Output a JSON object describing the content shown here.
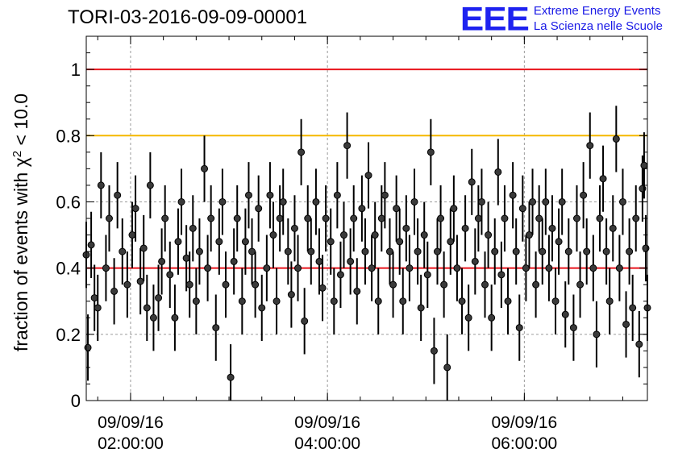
{
  "title": "TORI-03-2016-09-09-00001",
  "logo": {
    "mark": "EEE",
    "line1": "Extreme Energy Events",
    "line2": "La Scienza nelle Scuole",
    "color": "#1e22f0"
  },
  "chart_data": {
    "type": "scatter",
    "title": "TORI-03-2016-09-09-00001",
    "ylabel": "fraction of events with χ² < 10.0",
    "ylim": [
      0,
      1.1
    ],
    "yticks": [
      0,
      0.2,
      0.4,
      0.6,
      0.8,
      1
    ],
    "ytick_labels": [
      "0",
      "0.2",
      "0.4",
      "0.6",
      "0.8",
      "1"
    ],
    "xlim": [
      "2016-09-09 01:33:00",
      "2016-09-09 07:15:00"
    ],
    "xticks": [
      {
        "date": "09/09/16",
        "time": "02:00:00"
      },
      {
        "date": "09/09/16",
        "time": "04:00:00"
      },
      {
        "date": "09/09/16",
        "time": "06:00:00"
      }
    ],
    "grid": true,
    "reference_lines": [
      {
        "y": 1.0,
        "color": "#e8141c"
      },
      {
        "y": 0.8,
        "color": "#f5b800"
      },
      {
        "y": 0.4,
        "color": "#e8141c"
      }
    ],
    "series": [
      {
        "marker_color": "#111111",
        "error": 0.1,
        "points": [
          [
            "01:33",
            0.44
          ],
          [
            "01:34",
            0.16
          ],
          [
            "01:36",
            0.47
          ],
          [
            "01:38",
            0.31
          ],
          [
            "01:40",
            0.28
          ],
          [
            "01:42",
            0.65
          ],
          [
            "01:45",
            0.4
          ],
          [
            "01:47",
            0.55
          ],
          [
            "01:50",
            0.33
          ],
          [
            "01:52",
            0.62
          ],
          [
            "01:55",
            0.45
          ],
          [
            "01:58",
            0.35
          ],
          [
            "02:01",
            0.5
          ],
          [
            "02:03",
            0.58
          ],
          [
            "02:06",
            0.36
          ],
          [
            "02:08",
            0.46
          ],
          [
            "02:10",
            0.28
          ],
          [
            "02:12",
            0.65
          ],
          [
            "02:14",
            0.25
          ],
          [
            "02:17",
            0.31
          ],
          [
            "02:19",
            0.42
          ],
          [
            "02:21",
            0.55
          ],
          [
            "02:24",
            0.38
          ],
          [
            "02:27",
            0.25
          ],
          [
            "02:29",
            0.48
          ],
          [
            "02:31",
            0.6
          ],
          [
            "02:34",
            0.43
          ],
          [
            "02:36",
            0.35
          ],
          [
            "02:38",
            0.52
          ],
          [
            "02:40",
            0.3
          ],
          [
            "02:42",
            0.45
          ],
          [
            "02:45",
            0.7
          ],
          [
            "02:47",
            0.4
          ],
          [
            "02:49",
            0.55
          ],
          [
            "02:52",
            0.22
          ],
          [
            "02:54",
            0.48
          ],
          [
            "02:56",
            0.6
          ],
          [
            "02:58",
            0.35
          ],
          [
            "03:01",
            0.07
          ],
          [
            "03:03",
            0.42
          ],
          [
            "03:05",
            0.55
          ],
          [
            "03:08",
            0.3
          ],
          [
            "03:10",
            0.48
          ],
          [
            "03:12",
            0.62
          ],
          [
            "03:14",
            0.45
          ],
          [
            "03:16",
            0.35
          ],
          [
            "03:18",
            0.58
          ],
          [
            "03:20",
            0.28
          ],
          [
            "03:23",
            0.4
          ],
          [
            "03:25",
            0.62
          ],
          [
            "03:27",
            0.5
          ],
          [
            "03:29",
            0.3
          ],
          [
            "03:31",
            0.55
          ],
          [
            "03:33",
            0.6
          ],
          [
            "03:36",
            0.45
          ],
          [
            "03:38",
            0.32
          ],
          [
            "03:40",
            0.52
          ],
          [
            "03:42",
            0.4
          ],
          [
            "03:44",
            0.75
          ],
          [
            "03:46",
            0.24
          ],
          [
            "03:48",
            0.55
          ],
          [
            "03:50",
            0.45
          ],
          [
            "03:53",
            0.6
          ],
          [
            "03:55",
            0.42
          ],
          [
            "03:57",
            0.34
          ],
          [
            "03:59",
            0.55
          ],
          [
            "04:02",
            0.48
          ],
          [
            "04:04",
            0.3
          ],
          [
            "04:06",
            0.62
          ],
          [
            "04:08",
            0.38
          ],
          [
            "04:10",
            0.5
          ],
          [
            "04:12",
            0.77
          ],
          [
            "04:14",
            0.42
          ],
          [
            "04:16",
            0.55
          ],
          [
            "04:18",
            0.33
          ],
          [
            "04:21",
            0.58
          ],
          [
            "04:23",
            0.45
          ],
          [
            "04:25",
            0.68
          ],
          [
            "04:27",
            0.4
          ],
          [
            "04:29",
            0.5
          ],
          [
            "04:31",
            0.3
          ],
          [
            "04:33",
            0.55
          ],
          [
            "04:35",
            0.62
          ],
          [
            "04:38",
            0.45
          ],
          [
            "04:40",
            0.35
          ],
          [
            "04:42",
            0.58
          ],
          [
            "04:44",
            0.48
          ],
          [
            "04:46",
            0.3
          ],
          [
            "04:48",
            0.52
          ],
          [
            "04:50",
            0.4
          ],
          [
            "04:53",
            0.6
          ],
          [
            "04:55",
            0.45
          ],
          [
            "04:57",
            0.28
          ],
          [
            "04:59",
            0.5
          ],
          [
            "05:01",
            0.38
          ],
          [
            "05:03",
            0.75
          ],
          [
            "05:05",
            0.15
          ],
          [
            "05:07",
            0.45
          ],
          [
            "05:09",
            0.55
          ],
          [
            "05:11",
            0.35
          ],
          [
            "05:13",
            0.1
          ],
          [
            "05:15",
            0.48
          ],
          [
            "05:17",
            0.58
          ],
          [
            "05:19",
            0.4
          ],
          [
            "05:22",
            0.3
          ],
          [
            "05:24",
            0.52
          ],
          [
            "05:26",
            0.25
          ],
          [
            "05:28",
            0.66
          ],
          [
            "05:30",
            0.42
          ],
          [
            "05:32",
            0.55
          ],
          [
            "05:34",
            0.6
          ],
          [
            "05:36",
            0.35
          ],
          [
            "05:38",
            0.5
          ],
          [
            "05:40",
            0.25
          ],
          [
            "05:42",
            0.45
          ],
          [
            "05:44",
            0.69
          ],
          [
            "05:46",
            0.38
          ],
          [
            "05:48",
            0.55
          ],
          [
            "05:50",
            0.3
          ],
          [
            "05:53",
            0.62
          ],
          [
            "05:55",
            0.45
          ],
          [
            "05:57",
            0.22
          ],
          [
            "05:59",
            0.58
          ],
          [
            "06:01",
            0.4
          ],
          [
            "06:03",
            0.5
          ],
          [
            "06:05",
            0.6
          ],
          [
            "06:07",
            0.35
          ],
          [
            "06:09",
            0.55
          ],
          [
            "06:11",
            0.45
          ],
          [
            "06:13",
            0.6
          ],
          [
            "06:15",
            0.4
          ],
          [
            "06:17",
            0.52
          ],
          [
            "06:19",
            0.3
          ],
          [
            "06:21",
            0.48
          ],
          [
            "06:23",
            0.6
          ],
          [
            "06:25",
            0.26
          ],
          [
            "06:27",
            0.45
          ],
          [
            "06:30",
            0.22
          ],
          [
            "06:32",
            0.55
          ],
          [
            "06:34",
            0.35
          ],
          [
            "06:36",
            0.62
          ],
          [
            "06:38",
            0.45
          ],
          [
            "06:40",
            0.77
          ],
          [
            "06:42",
            0.4
          ],
          [
            "06:44",
            0.2
          ],
          [
            "06:46",
            0.55
          ],
          [
            "06:48",
            0.67
          ],
          [
            "06:50",
            0.45
          ],
          [
            "06:52",
            0.3
          ],
          [
            "06:54",
            0.52
          ],
          [
            "06:56",
            0.79
          ],
          [
            "06:58",
            0.4
          ],
          [
            "07:00",
            0.6
          ],
          [
            "07:02",
            0.23
          ],
          [
            "07:04",
            0.45
          ],
          [
            "07:06",
            0.28
          ],
          [
            "07:08",
            0.55
          ],
          [
            "07:10",
            0.17
          ],
          [
            "07:12",
            0.64
          ],
          [
            "07:13",
            0.71
          ],
          [
            "07:14",
            0.46
          ],
          [
            "07:15",
            0.28
          ]
        ]
      }
    ]
  }
}
